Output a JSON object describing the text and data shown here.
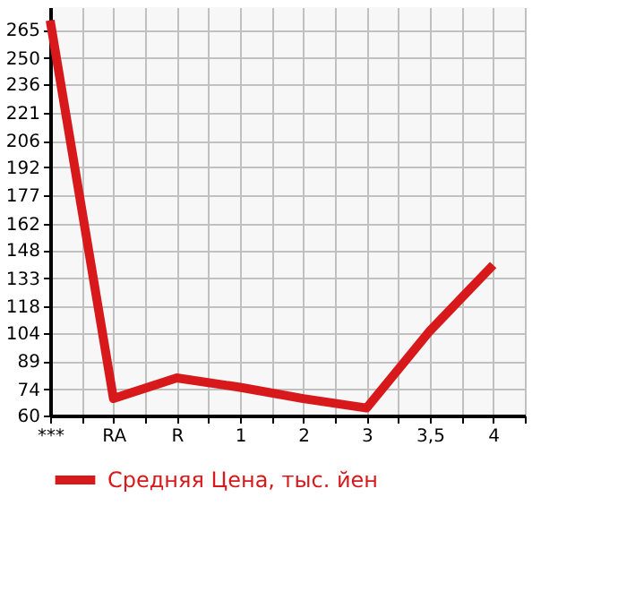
{
  "chart_data": {
    "type": "line",
    "categories": [
      "***",
      "RA",
      "R",
      "1",
      "2",
      "3",
      "3,5",
      "4"
    ],
    "series": [
      {
        "name": "Средняя Цена, тыс. йен",
        "color": "#d7191c",
        "values": [
          270,
          69,
          80,
          75,
          69,
          64,
          105,
          140
        ]
      }
    ],
    "ylim": [
      60,
      277
    ],
    "yticks": [
      60,
      74,
      89,
      104,
      118,
      133,
      148,
      162,
      177,
      192,
      206,
      221,
      236,
      250,
      265
    ],
    "grid": true,
    "legend": "bottom",
    "marker": "none",
    "line_style": "solid"
  }
}
